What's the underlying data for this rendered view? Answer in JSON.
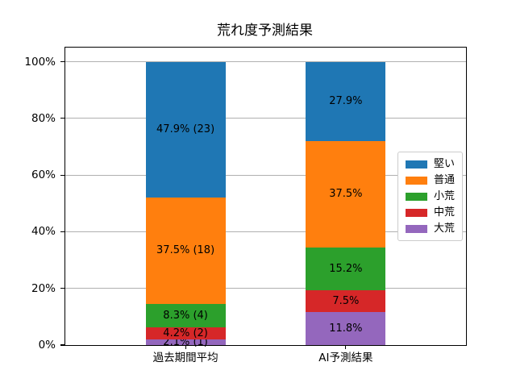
{
  "chart_data": {
    "type": "bar",
    "stacked": true,
    "title": "荒れ度予測結果",
    "xlabel": "",
    "ylabel": "",
    "categories": [
      "過去期間平均",
      "AI予測結果"
    ],
    "series": [
      {
        "name": "堅い",
        "color": "#1f77b4",
        "values": [
          47.9,
          27.9
        ],
        "segment_labels": [
          "47.9% (23)",
          "27.9%"
        ]
      },
      {
        "name": "普通",
        "color": "#ff7f0e",
        "values": [
          37.5,
          37.5
        ],
        "segment_labels": [
          "37.5% (18)",
          "37.5%"
        ]
      },
      {
        "name": "小荒",
        "color": "#2ca02c",
        "values": [
          8.3,
          15.2
        ],
        "segment_labels": [
          "8.3% (4)",
          "15.2%"
        ]
      },
      {
        "name": "中荒",
        "color": "#d62728",
        "values": [
          4.2,
          7.5
        ],
        "segment_labels": [
          "4.2% (2)",
          "7.5%"
        ]
      },
      {
        "name": "大荒",
        "color": "#9467bd",
        "values": [
          2.1,
          11.8
        ],
        "segment_labels": [
          "2.1% (1)",
          "11.8%"
        ]
      }
    ],
    "stack_order_bottom_to_top": [
      "大荒",
      "中荒",
      "小荒",
      "普通",
      "堅い"
    ],
    "yticks": {
      "values": [
        0,
        20,
        40,
        60,
        80,
        100
      ],
      "labels": [
        "0%",
        "20%",
        "40%",
        "60%",
        "80%",
        "100%"
      ]
    },
    "ylim": [
      0,
      105
    ],
    "grid": "horizontal",
    "grid_color": "#b0b0b0",
    "legend": {
      "position": "center right",
      "entries": [
        "堅い",
        "普通",
        "小荒",
        "中荒",
        "大荒"
      ]
    }
  }
}
